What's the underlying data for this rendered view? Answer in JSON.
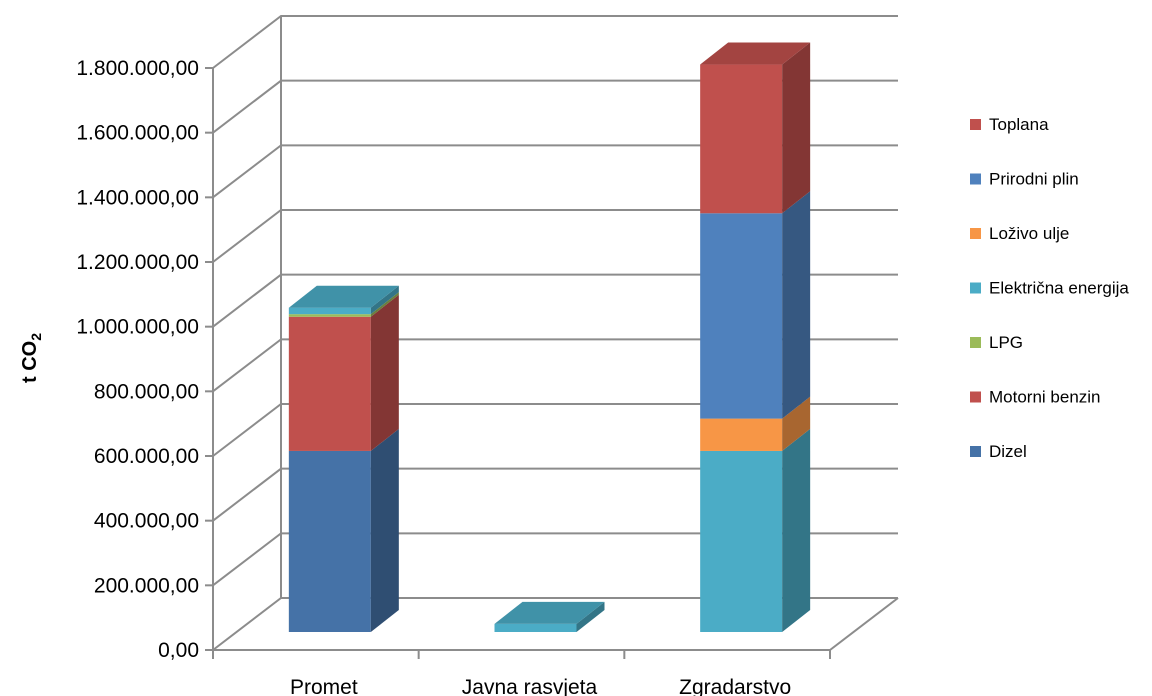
{
  "chart_data": {
    "type": "bar",
    "stacked": true,
    "three_d": true,
    "title": "",
    "xlabel": "",
    "ylabel": "t CO",
    "ylabel_subscript": "2",
    "ylim": [
      0,
      1800000
    ],
    "yticks": [
      0,
      200000,
      400000,
      600000,
      800000,
      1000000,
      1200000,
      1400000,
      1600000,
      1800000
    ],
    "ytick_labels": [
      "0,00",
      "200.000,00",
      "400.000,00",
      "600.000,00",
      "800.000,00",
      "1.000.000,00",
      "1.200.000,00",
      "1.400.000,00",
      "1.600.000,00",
      "1.800.000,00"
    ],
    "grid": true,
    "legend_position": "right",
    "categories": [
      "Promet",
      "Javna rasvjeta",
      "Zgradarstvo"
    ],
    "series": [
      {
        "name": "Dizel",
        "color": "#4572A7",
        "values": [
          560000,
          0,
          0
        ]
      },
      {
        "name": "Motorni benzin",
        "color": "#C0504D",
        "values": [
          415000,
          0,
          0
        ]
      },
      {
        "name": "LPG",
        "color": "#9BBB59",
        "values": [
          8000,
          0,
          0
        ]
      },
      {
        "name": "Električna energija",
        "color": "#4BACC6",
        "values": [
          20000,
          25000,
          560000
        ]
      },
      {
        "name": "Loživo ulje",
        "color": "#F79646",
        "values": [
          0,
          0,
          100000
        ]
      },
      {
        "name": "Prirodni plin",
        "color": "#4F81BD",
        "values": [
          0,
          0,
          635000
        ]
      },
      {
        "name": "Toplana",
        "color": "#C0504D",
        "values": [
          0,
          0,
          460000
        ]
      }
    ],
    "legend_order": [
      "Toplana",
      "Prirodni plin",
      "Loživo ulje",
      "Električna energija",
      "LPG",
      "Motorni benzin",
      "Dizel"
    ]
  }
}
